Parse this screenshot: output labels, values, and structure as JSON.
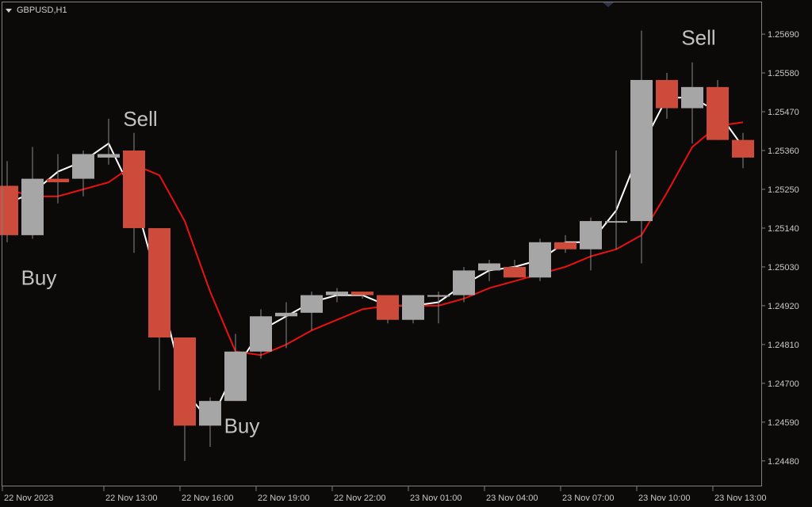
{
  "window": {
    "symbol_label": "GBPUSD,H1"
  },
  "colors": {
    "background": "#0c0a09",
    "frame": "#808080",
    "bull_candle": "#a6a6a6",
    "bear_candle": "#cd4b3a",
    "wick": "#8a8a8a",
    "fast_ma": "#ffffff",
    "slow_ma": "#e8120e",
    "text": "#c8c8c8",
    "signal_text": "#c2c2c2"
  },
  "chart_data": {
    "type": "candlestick",
    "symbol": "GBPUSD",
    "timeframe": "H1",
    "ylim": [
      1.2441,
      1.2578
    ],
    "y_ticks": [
      "1.25690",
      "1.25580",
      "1.25470",
      "1.25360",
      "1.25250",
      "1.25140",
      "1.25030",
      "1.24920",
      "1.24810",
      "1.24700",
      "1.24590",
      "1.24480"
    ],
    "x_ticks": [
      {
        "index": 0,
        "label": "22 Nov 2023"
      },
      {
        "index": 4,
        "label": "22 Nov 13:00"
      },
      {
        "index": 7,
        "label": "22 Nov 16:00"
      },
      {
        "index": 10,
        "label": "22 Nov 19:00"
      },
      {
        "index": 13,
        "label": "22 Nov 22:00"
      },
      {
        "index": 16,
        "label": "23 Nov 01:00"
      },
      {
        "index": 19,
        "label": "23 Nov 04:00"
      },
      {
        "index": 22,
        "label": "23 Nov 07:00"
      },
      {
        "index": 25,
        "label": "23 Nov 10:00"
      },
      {
        "index": 28,
        "label": "23 Nov 13:00"
      }
    ],
    "candles": [
      {
        "o": 1.2526,
        "h": 1.2533,
        "l": 1.251,
        "c": 1.2512
      },
      {
        "o": 1.2512,
        "h": 1.2537,
        "l": 1.2511,
        "c": 1.2528
      },
      {
        "o": 1.2528,
        "h": 1.2535,
        "l": 1.2521,
        "c": 1.2527
      },
      {
        "o": 1.2528,
        "h": 1.2536,
        "l": 1.2523,
        "c": 1.2535
      },
      {
        "o": 1.2534,
        "h": 1.2545,
        "l": 1.2532,
        "c": 1.2535
      },
      {
        "o": 1.2536,
        "h": 1.2541,
        "l": 1.2507,
        "c": 1.2514
      },
      {
        "o": 1.2514,
        "h": 1.2514,
        "l": 1.2468,
        "c": 1.2483
      },
      {
        "o": 1.2483,
        "h": 1.2483,
        "l": 1.2448,
        "c": 1.2458
      },
      {
        "o": 1.2458,
        "h": 1.2466,
        "l": 1.2452,
        "c": 1.2465
      },
      {
        "o": 1.2465,
        "h": 1.2484,
        "l": 1.2465,
        "c": 1.2479
      },
      {
        "o": 1.2479,
        "h": 1.2491,
        "l": 1.2477,
        "c": 1.2489
      },
      {
        "o": 1.2489,
        "h": 1.2493,
        "l": 1.248,
        "c": 1.249
      },
      {
        "o": 1.249,
        "h": 1.2496,
        "l": 1.2485,
        "c": 1.2495
      },
      {
        "o": 1.2495,
        "h": 1.2497,
        "l": 1.2493,
        "c": 1.2496
      },
      {
        "o": 1.2496,
        "h": 1.2496,
        "l": 1.2494,
        "c": 1.2495
      },
      {
        "o": 1.2495,
        "h": 1.2495,
        "l": 1.2487,
        "c": 1.2488
      },
      {
        "o": 1.2488,
        "h": 1.2495,
        "l": 1.2487,
        "c": 1.2495
      },
      {
        "o": 1.2495,
        "h": 1.2496,
        "l": 1.2487,
        "c": 1.2495
      },
      {
        "o": 1.2495,
        "h": 1.2503,
        "l": 1.2493,
        "c": 1.2502
      },
      {
        "o": 1.2502,
        "h": 1.2505,
        "l": 1.2499,
        "c": 1.2504
      },
      {
        "o": 1.2503,
        "h": 1.2505,
        "l": 1.25,
        "c": 1.25
      },
      {
        "o": 1.25,
        "h": 1.2511,
        "l": 1.2499,
        "c": 1.251
      },
      {
        "o": 1.251,
        "h": 1.2512,
        "l": 1.2507,
        "c": 1.2508
      },
      {
        "o": 1.2508,
        "h": 1.2517,
        "l": 1.2502,
        "c": 1.2516
      },
      {
        "o": 1.2516,
        "h": 1.2536,
        "l": 1.2508,
        "c": 1.2516
      },
      {
        "o": 1.2516,
        "h": 1.257,
        "l": 1.2504,
        "c": 1.2556
      },
      {
        "o": 1.2556,
        "h": 1.2558,
        "l": 1.2545,
        "c": 1.2548
      },
      {
        "o": 1.2548,
        "h": 1.2561,
        "l": 1.2538,
        "c": 1.2554
      },
      {
        "o": 1.2554,
        "h": 1.2556,
        "l": 1.2539,
        "c": 1.2539
      },
      {
        "o": 1.2539,
        "h": 1.2541,
        "l": 1.2531,
        "c": 1.2534
      }
    ],
    "series": [
      {
        "color": "#ffffff",
        "values": [
          1.2521,
          1.2524,
          1.253,
          1.2533,
          1.2538,
          1.2523,
          1.2497,
          1.2468,
          1.2459,
          1.2474,
          1.2485,
          1.2489,
          1.2493,
          1.2495,
          1.2495,
          1.2492,
          1.2492,
          1.2493,
          1.2498,
          1.2502,
          1.2503,
          1.2505,
          1.251,
          1.251,
          1.2519,
          1.2537,
          1.2551,
          1.2551,
          1.2547,
          1.2537
        ]
      },
      {
        "color": "#e8120e",
        "values": [
          1.2525,
          1.2523,
          1.2523,
          1.2525,
          1.2527,
          1.2532,
          1.2529,
          1.2516,
          1.2496,
          1.2479,
          1.2478,
          1.2481,
          1.2485,
          1.2488,
          1.2491,
          1.2492,
          1.2492,
          1.2492,
          1.2494,
          1.2497,
          1.2499,
          1.2501,
          1.2503,
          1.2506,
          1.2508,
          1.2512,
          1.2524,
          1.2537,
          1.2543,
          1.2544
        ]
      }
    ],
    "annotations": [
      {
        "text": "Buy",
        "index": 1,
        "anchor_price": 1.25
      },
      {
        "text": "Sell",
        "index": 5,
        "anchor_price": 1.2545
      },
      {
        "text": "Buy",
        "index": 9,
        "anchor_price": 1.2458
      },
      {
        "text": "Sell",
        "index": 27,
        "anchor_price": 1.2568
      }
    ]
  }
}
